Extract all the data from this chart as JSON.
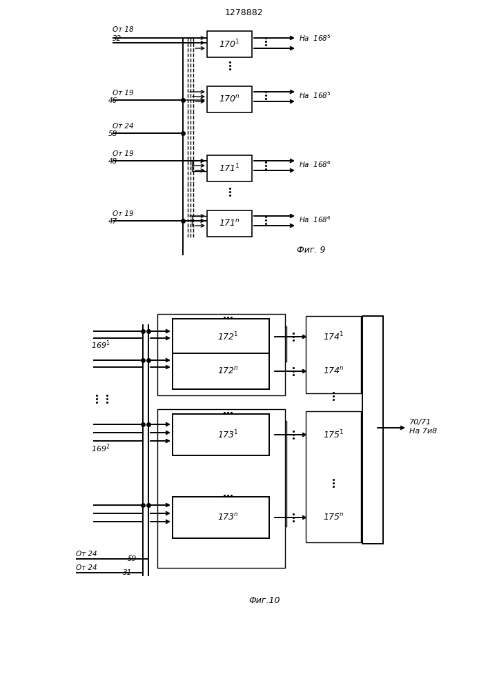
{
  "title": "1278882",
  "fig9_label": "Фиг. 9",
  "fig10_label": "Фиг.10",
  "bg_color": "#ffffff",
  "line_color": "#000000"
}
